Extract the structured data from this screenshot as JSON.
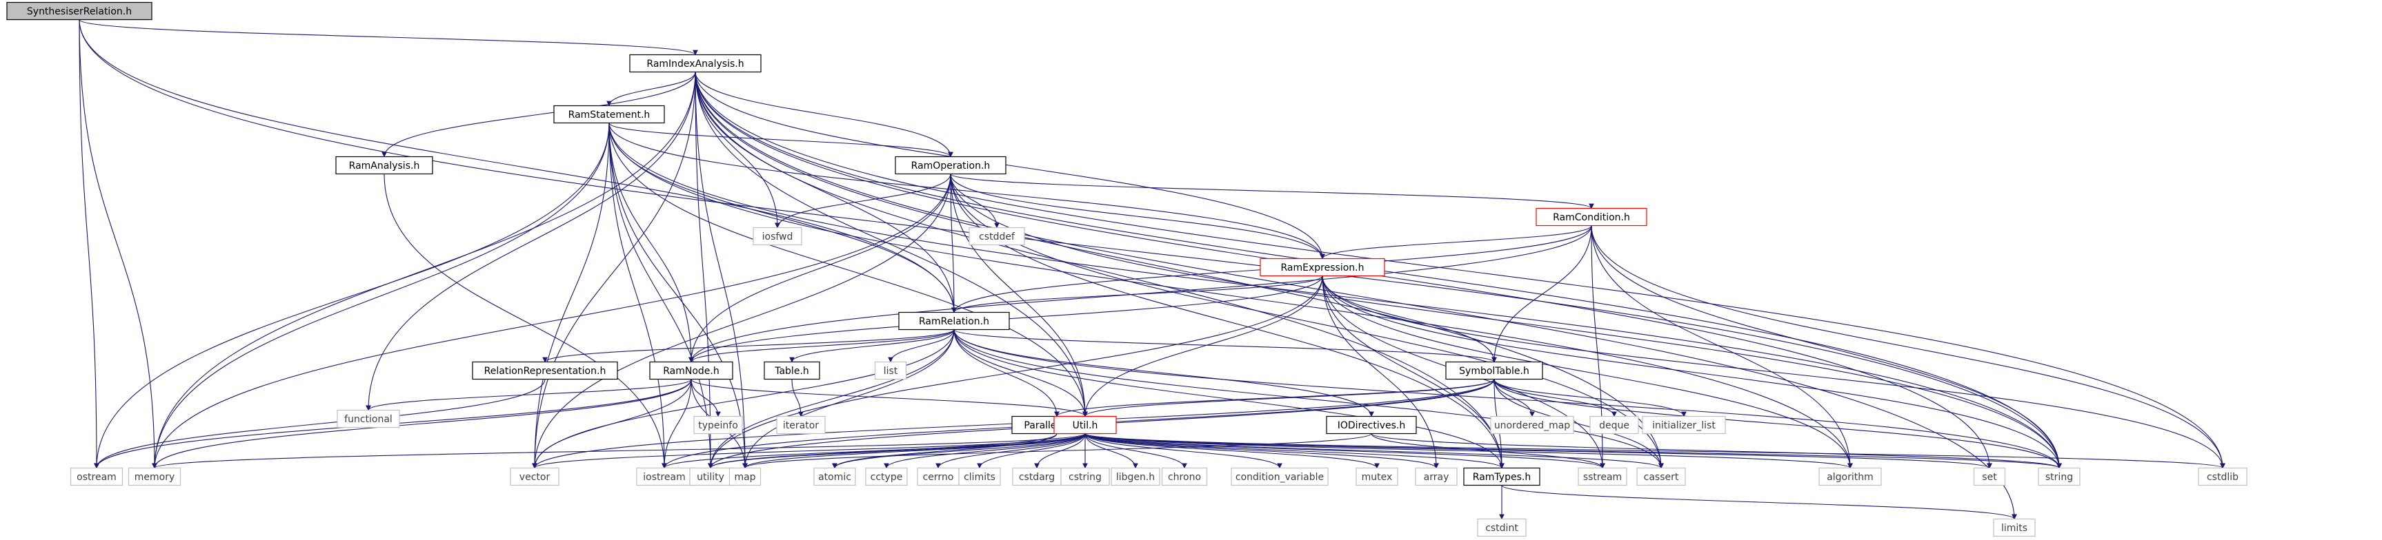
{
  "colors": {
    "edge": "#191970",
    "node_border": "#000000",
    "header_node_border": "#000000",
    "system_node_border": "#bfbfbf",
    "truncated_node_border": "#ff0000",
    "root_fill": "#bfbfbf",
    "node_fill": "#ffffff",
    "header_text": "#000000",
    "system_text": "#3f3f3f"
  },
  "nodes": [
    {
      "id": "n_synth",
      "label": "SynthesiserRelation.h",
      "kind": "root"
    },
    {
      "id": "n_rir",
      "label": "RamIndexAnalysis.h",
      "kind": "header"
    },
    {
      "id": "n_rstmt",
      "label": "RamStatement.h",
      "kind": "header"
    },
    {
      "id": "n_rana",
      "label": "RamAnalysis.h",
      "kind": "header"
    },
    {
      "id": "n_rop",
      "label": "RamOperation.h",
      "kind": "header"
    },
    {
      "id": "n_iosfwd",
      "label": "iosfwd",
      "kind": "system"
    },
    {
      "id": "n_cstddef",
      "label": "cstddef",
      "kind": "system"
    },
    {
      "id": "n_rcond",
      "label": "RamCondition.h",
      "kind": "truncated"
    },
    {
      "id": "n_rexpr",
      "label": "RamExpression.h",
      "kind": "truncated"
    },
    {
      "id": "n_rrel",
      "label": "RamRelation.h",
      "kind": "header"
    },
    {
      "id": "n_relrep",
      "label": "RelationRepresentation.h",
      "kind": "header"
    },
    {
      "id": "n_rnode",
      "label": "RamNode.h",
      "kind": "header"
    },
    {
      "id": "n_table",
      "label": "Table.h",
      "kind": "header"
    },
    {
      "id": "n_list",
      "label": "list",
      "kind": "system"
    },
    {
      "id": "n_symtab",
      "label": "SymbolTable.h",
      "kind": "header"
    },
    {
      "id": "n_iodir",
      "label": "IODirectives.h",
      "kind": "header"
    },
    {
      "id": "n_putil",
      "label": "ParallelUtils.h",
      "kind": "header"
    },
    {
      "id": "n_util",
      "label": "Util.h",
      "kind": "truncated"
    },
    {
      "id": "n_functional",
      "label": "functional",
      "kind": "system"
    },
    {
      "id": "n_typeinfo",
      "label": "typeinfo",
      "kind": "system"
    },
    {
      "id": "n_iterator",
      "label": "iterator",
      "kind": "system"
    },
    {
      "id": "n_unordered_map",
      "label": "unordered_map",
      "kind": "system"
    },
    {
      "id": "n_deque",
      "label": "deque",
      "kind": "system"
    },
    {
      "id": "n_initializer_list",
      "label": "initializer_list",
      "kind": "system"
    },
    {
      "id": "n_ostream",
      "label": "ostream",
      "kind": "system"
    },
    {
      "id": "n_memory",
      "label": "memory",
      "kind": "system"
    },
    {
      "id": "n_vector",
      "label": "vector",
      "kind": "system"
    },
    {
      "id": "n_iostream",
      "label": "iostream",
      "kind": "system"
    },
    {
      "id": "n_utility",
      "label": "utility",
      "kind": "system"
    },
    {
      "id": "n_map",
      "label": "map",
      "kind": "system"
    },
    {
      "id": "n_atomic",
      "label": "atomic",
      "kind": "system"
    },
    {
      "id": "n_cctype",
      "label": "cctype",
      "kind": "system"
    },
    {
      "id": "n_cerrno",
      "label": "cerrno",
      "kind": "system"
    },
    {
      "id": "n_climits",
      "label": "climits",
      "kind": "system"
    },
    {
      "id": "n_cstdarg",
      "label": "cstdarg",
      "kind": "system"
    },
    {
      "id": "n_cstring",
      "label": "cstring",
      "kind": "system"
    },
    {
      "id": "n_libgen",
      "label": "libgen.h",
      "kind": "system"
    },
    {
      "id": "n_chrono",
      "label": "chrono",
      "kind": "system"
    },
    {
      "id": "n_condvar",
      "label": "condition_variable",
      "kind": "system"
    },
    {
      "id": "n_mutex",
      "label": "mutex",
      "kind": "system"
    },
    {
      "id": "n_array",
      "label": "array",
      "kind": "system"
    },
    {
      "id": "n_rtypes",
      "label": "RamTypes.h",
      "kind": "header"
    },
    {
      "id": "n_sstream",
      "label": "sstream",
      "kind": "system"
    },
    {
      "id": "n_cassert",
      "label": "cassert",
      "kind": "system"
    },
    {
      "id": "n_algorithm",
      "label": "algorithm",
      "kind": "system"
    },
    {
      "id": "n_set",
      "label": "set",
      "kind": "system"
    },
    {
      "id": "n_string",
      "label": "string",
      "kind": "system"
    },
    {
      "id": "n_cstdlib",
      "label": "cstdlib",
      "kind": "system"
    },
    {
      "id": "n_cstdint",
      "label": "cstdint",
      "kind": "system"
    },
    {
      "id": "n_limits",
      "label": "limits",
      "kind": "system"
    }
  ],
  "edges": [
    [
      "n_synth",
      "n_rir"
    ],
    [
      "n_synth",
      "n_rrel"
    ],
    [
      "n_synth",
      "n_ostream"
    ],
    [
      "n_synth",
      "n_memory"
    ],
    [
      "n_synth",
      "n_string"
    ],
    [
      "n_rir",
      "n_rstmt"
    ],
    [
      "n_rir",
      "n_rana"
    ],
    [
      "n_rir",
      "n_rop"
    ],
    [
      "n_rir",
      "n_rrel"
    ],
    [
      "n_rir",
      "n_rexpr"
    ],
    [
      "n_rir",
      "n_iosfwd"
    ],
    [
      "n_rir",
      "n_functional"
    ],
    [
      "n_rir",
      "n_memory"
    ],
    [
      "n_rir",
      "n_vector"
    ],
    [
      "n_rir",
      "n_map"
    ],
    [
      "n_rir",
      "n_utility"
    ],
    [
      "n_rir",
      "n_util"
    ],
    [
      "n_rir",
      "n_cassert"
    ],
    [
      "n_rir",
      "n_set"
    ],
    [
      "n_rir",
      "n_string"
    ],
    [
      "n_rir",
      "n_cstdlib"
    ],
    [
      "n_rir",
      "n_limits"
    ],
    [
      "n_rir",
      "n_rtypes"
    ],
    [
      "n_rstmt",
      "n_rop"
    ],
    [
      "n_rstmt",
      "n_rrel"
    ],
    [
      "n_rstmt",
      "n_rnode"
    ],
    [
      "n_rstmt",
      "n_rexpr"
    ],
    [
      "n_rstmt",
      "n_util"
    ],
    [
      "n_rstmt",
      "n_ostream"
    ],
    [
      "n_rstmt",
      "n_memory"
    ],
    [
      "n_rstmt",
      "n_vector"
    ],
    [
      "n_rstmt",
      "n_iostream"
    ],
    [
      "n_rstmt",
      "n_string"
    ],
    [
      "n_rstmt",
      "n_algorithm"
    ],
    [
      "n_rstmt",
      "n_map"
    ],
    [
      "n_rstmt",
      "n_utility"
    ],
    [
      "n_rana",
      "n_iostream"
    ],
    [
      "n_rop",
      "n_rcond"
    ],
    [
      "n_rop",
      "n_rexpr"
    ],
    [
      "n_rop",
      "n_rrel"
    ],
    [
      "n_rop",
      "n_rnode"
    ],
    [
      "n_rop",
      "n_iosfwd"
    ],
    [
      "n_rop",
      "n_cstddef"
    ],
    [
      "n_rop",
      "n_util"
    ],
    [
      "n_rop",
      "n_memory"
    ],
    [
      "n_rop",
      "n_vector"
    ],
    [
      "n_rop",
      "n_string"
    ],
    [
      "n_rop",
      "n_cassert"
    ],
    [
      "n_rop",
      "n_rtypes"
    ],
    [
      "n_rcond",
      "n_rexpr"
    ],
    [
      "n_rcond",
      "n_rrel"
    ],
    [
      "n_rcond",
      "n_rnode"
    ],
    [
      "n_rcond",
      "n_symtab"
    ],
    [
      "n_rcond",
      "n_algorithm"
    ],
    [
      "n_rcond",
      "n_sstream"
    ],
    [
      "n_rcond",
      "n_string"
    ],
    [
      "n_rcond",
      "n_cstdlib"
    ],
    [
      "n_rexpr",
      "n_rrel"
    ],
    [
      "n_rexpr",
      "n_rnode"
    ],
    [
      "n_rexpr",
      "n_symtab"
    ],
    [
      "n_rexpr",
      "n_util"
    ],
    [
      "n_rexpr",
      "n_rtypes"
    ],
    [
      "n_rexpr",
      "n_utility"
    ],
    [
      "n_rexpr",
      "n_algorithm"
    ],
    [
      "n_rexpr",
      "n_sstream"
    ],
    [
      "n_rexpr",
      "n_array"
    ],
    [
      "n_rexpr",
      "n_string"
    ],
    [
      "n_rexpr",
      "n_cstdlib"
    ],
    [
      "n_rrel",
      "n_relrep"
    ],
    [
      "n_rrel",
      "n_rnode"
    ],
    [
      "n_rrel",
      "n_table"
    ],
    [
      "n_rrel",
      "n_list"
    ],
    [
      "n_rrel",
      "n_symtab"
    ],
    [
      "n_rrel",
      "n_iodir"
    ],
    [
      "n_rrel",
      "n_putil"
    ],
    [
      "n_rrel",
      "n_util"
    ],
    [
      "n_rrel",
      "n_vector"
    ],
    [
      "n_rrel",
      "n_utility"
    ],
    [
      "n_rrel",
      "n_map"
    ],
    [
      "n_rrel",
      "n_string"
    ],
    [
      "n_rrel",
      "n_cassert"
    ],
    [
      "n_rrel",
      "n_rtypes"
    ],
    [
      "n_rnode",
      "n_functional"
    ],
    [
      "n_rnode",
      "n_typeinfo"
    ],
    [
      "n_rnode",
      "n_util"
    ],
    [
      "n_rnode",
      "n_ostream"
    ],
    [
      "n_rnode",
      "n_memory"
    ],
    [
      "n_rnode",
      "n_vector"
    ],
    [
      "n_rnode",
      "n_iostream"
    ],
    [
      "n_rnode",
      "n_map"
    ],
    [
      "n_relrep",
      "n_ostream"
    ],
    [
      "n_table",
      "n_iterator"
    ],
    [
      "n_symtab",
      "n_util"
    ],
    [
      "n_symtab",
      "n_putil"
    ],
    [
      "n_symtab",
      "n_rtypes"
    ],
    [
      "n_symtab",
      "n_unordered_map"
    ],
    [
      "n_symtab",
      "n_deque"
    ],
    [
      "n_symtab",
      "n_initializer_list"
    ],
    [
      "n_symtab",
      "n_cassert"
    ],
    [
      "n_symtab",
      "n_iostream"
    ],
    [
      "n_symtab",
      "n_string"
    ],
    [
      "n_symtab",
      "n_vector"
    ],
    [
      "n_symtab",
      "n_utility"
    ],
    [
      "n_iodir",
      "n_map"
    ],
    [
      "n_iodir",
      "n_sstream"
    ],
    [
      "n_iodir",
      "n_string"
    ],
    [
      "n_putil",
      "n_atomic"
    ],
    [
      "n_putil",
      "n_utility"
    ],
    [
      "n_util",
      "n_memory"
    ],
    [
      "n_util",
      "n_vector"
    ],
    [
      "n_util",
      "n_iostream"
    ],
    [
      "n_util",
      "n_utility"
    ],
    [
      "n_util",
      "n_map"
    ],
    [
      "n_util",
      "n_atomic"
    ],
    [
      "n_util",
      "n_cctype"
    ],
    [
      "n_util",
      "n_cerrno"
    ],
    [
      "n_util",
      "n_climits"
    ],
    [
      "n_util",
      "n_cstdarg"
    ],
    [
      "n_util",
      "n_cstring"
    ],
    [
      "n_util",
      "n_libgen"
    ],
    [
      "n_util",
      "n_chrono"
    ],
    [
      "n_util",
      "n_condvar"
    ],
    [
      "n_util",
      "n_mutex"
    ],
    [
      "n_util",
      "n_array"
    ],
    [
      "n_util",
      "n_rtypes"
    ],
    [
      "n_util",
      "n_sstream"
    ],
    [
      "n_util",
      "n_cassert"
    ],
    [
      "n_util",
      "n_algorithm"
    ],
    [
      "n_util",
      "n_set"
    ],
    [
      "n_util",
      "n_string"
    ],
    [
      "n_util",
      "n_cstdlib"
    ],
    [
      "n_rtypes",
      "n_cstdint"
    ],
    [
      "n_rtypes",
      "n_limits"
    ]
  ]
}
